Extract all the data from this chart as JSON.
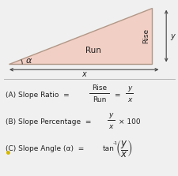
{
  "bg_color": "#f0f0f0",
  "triangle_fill": "#f2cfc4",
  "triangle_edge": "#b09888",
  "line_color": "#444444",
  "text_color": "#222222",
  "alpha_label": "α",
  "run_label": "Run",
  "rise_label": "Rise",
  "x_label": "x",
  "y_label": "y",
  "times100": "× 100",
  "tan_exp": "-1"
}
